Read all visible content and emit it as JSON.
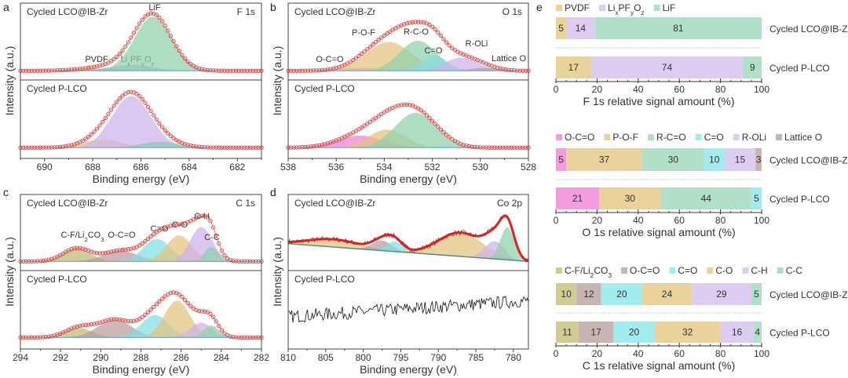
{
  "figure": {
    "panel_letters": [
      "a",
      "b",
      "c",
      "d",
      "e"
    ]
  },
  "chart_data": [
    {
      "id": "a",
      "type": "line",
      "core_level": "F 1s",
      "xlabel": "Binding energy (eV)",
      "ylabel": "Intensity (a.u.)",
      "xlim": [
        691,
        681
      ],
      "xticks": [
        690,
        688,
        686,
        684,
        682
      ],
      "minor_step": 1,
      "fit_style": "circles",
      "subplots": [
        {
          "sample": "Cycled LCO@IB-Zr",
          "components": [
            {
              "label": "PVDF",
              "center": 687.8,
              "height": 0.04,
              "fwhm": 2.0,
              "color": "#e3c47e"
            },
            {
              "label": "LixPFyOz",
              "center": 686.4,
              "height": 0.1,
              "fwhm": 2.0,
              "color": "#a9a3d0"
            },
            {
              "label": "LiF",
              "center": 685.5,
              "height": 0.9,
              "fwhm": 1.8,
              "color": "#8fd1aa"
            }
          ]
        },
        {
          "sample": "Cycled P-LCO",
          "components": [
            {
              "label": "PVDF",
              "center": 687.6,
              "height": 0.14,
              "fwhm": 1.8,
              "color": "#e3c47e"
            },
            {
              "label": "LixPFyOz",
              "center": 686.4,
              "height": 0.86,
              "fwhm": 1.9,
              "color": "#cdb3ec"
            },
            {
              "label": "LiF",
              "center": 685.2,
              "height": 0.1,
              "fwhm": 1.8,
              "color": "#8fc6b0"
            }
          ]
        }
      ]
    },
    {
      "id": "b",
      "type": "line",
      "core_level": "O 1s",
      "xlabel": "Binding energy (eV)",
      "ylabel": "Intensity (a.u.)",
      "xlim": [
        538,
        528
      ],
      "xticks": [
        538,
        536,
        534,
        532,
        530,
        528
      ],
      "minor_step": 1,
      "fit_style": "circles",
      "subplots": [
        {
          "sample": "Cycled LCO@IB-Zr",
          "components": [
            {
              "label": "O-C=O",
              "center": 534.9,
              "height": 0.05,
              "fwhm": 1.8,
              "color": "#ee80d6"
            },
            {
              "label": "P-O-F",
              "center": 533.8,
              "height": 0.48,
              "fwhm": 2.2,
              "color": "#e3c47e"
            },
            {
              "label": "R-C-O",
              "center": 532.6,
              "height": 0.5,
              "fwhm": 1.8,
              "color": "#8fd1aa"
            },
            {
              "label": "C=O",
              "center": 531.9,
              "height": 0.25,
              "fwhm": 1.2,
              "color": "#7fe0e4"
            },
            {
              "label": "R-OLi",
              "center": 530.8,
              "height": 0.22,
              "fwhm": 1.6,
              "color": "#cdb3ec"
            },
            {
              "label": "Lattice O",
              "center": 529.8,
              "height": 0.05,
              "fwhm": 1.3,
              "color": "#b99c9c"
            }
          ]
        },
        {
          "sample": "Cycled P-LCO",
          "components": [
            {
              "label": "O-C=O",
              "center": 535.0,
              "height": 0.2,
              "fwhm": 2.2,
              "color": "#ee80d6"
            },
            {
              "label": "P-O-F",
              "center": 533.9,
              "height": 0.3,
              "fwhm": 1.8,
              "color": "#e3c47e"
            },
            {
              "label": "R-C-O",
              "center": 532.7,
              "height": 0.58,
              "fwhm": 2.0,
              "color": "#8fd1aa"
            },
            {
              "label": "C=O",
              "center": 531.5,
              "height": 0.03,
              "fwhm": 1.2,
              "color": "#7fe0e4"
            }
          ]
        }
      ]
    },
    {
      "id": "c",
      "type": "line",
      "core_level": "C 1s",
      "xlabel": "Binding energy (eV)",
      "ylabel": "Intensity (a.u.)",
      "xlim": [
        294,
        282
      ],
      "xticks": [
        294,
        292,
        290,
        288,
        286,
        284,
        282
      ],
      "minor_step": 1,
      "fit_style": "circles",
      "subplots": [
        {
          "sample": "Cycled LCO@IB-Zr",
          "components": [
            {
              "label": "C-F/Li2CO3",
              "center": 291.2,
              "height": 0.22,
              "fwhm": 1.6,
              "color": "#bdb879"
            },
            {
              "label": "O-C=O",
              "center": 289.0,
              "height": 0.18,
              "fwhm": 2.0,
              "color": "#b99c9c"
            },
            {
              "label": "C=O",
              "center": 287.2,
              "height": 0.38,
              "fwhm": 1.6,
              "color": "#7fe0e4"
            },
            {
              "label": "C-O",
              "center": 286.1,
              "height": 0.44,
              "fwhm": 1.5,
              "color": "#e3c47e"
            },
            {
              "label": "C-H",
              "center": 285.0,
              "height": 0.58,
              "fwhm": 1.3,
              "color": "#cdb3ec"
            },
            {
              "label": "C-C",
              "center": 284.5,
              "height": 0.25,
              "fwhm": 0.8,
              "color": "#8fd1aa"
            }
          ]
        },
        {
          "sample": "Cycled P-LCO",
          "components": [
            {
              "label": "C-F/Li2CO3",
              "center": 291.1,
              "height": 0.16,
              "fwhm": 1.6,
              "color": "#bdb879"
            },
            {
              "label": "O-C=O",
              "center": 289.3,
              "height": 0.3,
              "fwhm": 2.0,
              "color": "#b99c9c"
            },
            {
              "label": "C=O",
              "center": 287.3,
              "height": 0.38,
              "fwhm": 1.6,
              "color": "#7fe0e4"
            },
            {
              "label": "C-O",
              "center": 286.2,
              "height": 0.62,
              "fwhm": 1.5,
              "color": "#e3c47e"
            },
            {
              "label": "C-H",
              "center": 285.0,
              "height": 0.25,
              "fwhm": 1.3,
              "color": "#cdb3ec"
            },
            {
              "label": "C-C",
              "center": 284.5,
              "height": 0.2,
              "fwhm": 0.9,
              "color": "#8fd1aa"
            }
          ]
        }
      ]
    },
    {
      "id": "d",
      "type": "line",
      "core_level": "Co 2p",
      "xlabel": "Binding energy (eV)",
      "ylabel": "Intensity (a.u.)",
      "xlim": [
        810,
        778
      ],
      "xticks": [
        810,
        805,
        800,
        795,
        790,
        785,
        780
      ],
      "minor_step": 2.5,
      "fit_style": "line",
      "subplots": [
        {
          "sample": "Cycled LCO@IB-Zr",
          "background": [
            [
              810,
              0.3
            ],
            [
              778,
              0.0
            ]
          ],
          "components": [
            {
              "center": 804,
              "height": 0.13,
              "fwhm": 8,
              "color": "#e3c47e"
            },
            {
              "center": 797.5,
              "height": 0.17,
              "fwhm": 3,
              "color": "#b99c9c"
            },
            {
              "center": 795.8,
              "height": 0.17,
              "fwhm": 2.5,
              "color": "#7fe0e4"
            },
            {
              "center": 787,
              "height": 0.4,
              "fwhm": 7,
              "color": "#e3c47e"
            },
            {
              "center": 782.5,
              "height": 0.3,
              "fwhm": 3,
              "color": "#cdb3ec"
            },
            {
              "center": 780.8,
              "height": 0.55,
              "fwhm": 2.2,
              "color": "#8fd1aa"
            }
          ]
        },
        {
          "sample": "Cycled P-LCO",
          "trend": [
            [
              810,
              0.35
            ],
            [
              778,
              0.62
            ]
          ],
          "components": []
        }
      ]
    },
    {
      "id": "e1",
      "type": "bar",
      "orientation": "horizontal",
      "stacked": true,
      "xlabel": "F 1s relative signal amount (%)",
      "xlim": [
        0,
        100
      ],
      "xticks": [
        0,
        20,
        40,
        60,
        80,
        100
      ],
      "categories": [
        "Cycled LCO@IB-Zr",
        "Cycled P-LCO"
      ],
      "series": [
        {
          "name": "PVDF",
          "color": "#ead39b",
          "values": [
            5,
            17
          ]
        },
        {
          "name": "LixPFyOz",
          "color": "#ddcdf2",
          "values": [
            14,
            74
          ]
        },
        {
          "name": "LiF",
          "color": "#b1e0c8",
          "values": [
            81,
            9
          ]
        }
      ]
    },
    {
      "id": "e2",
      "type": "bar",
      "orientation": "horizontal",
      "stacked": true,
      "xlabel": "O 1s relative signal amount (%)",
      "xlim": [
        0,
        100
      ],
      "xticks": [
        0,
        20,
        40,
        60,
        80,
        100
      ],
      "categories": [
        "Cycled LCO@IB-Zr",
        "Cycled P-LCO"
      ],
      "series": [
        {
          "name": "O-C=O",
          "color": "#f39ce0",
          "values": [
            5,
            21
          ]
        },
        {
          "name": "P-O-F",
          "color": "#ead39b",
          "values": [
            37,
            30
          ]
        },
        {
          "name": "R-C=O",
          "color": "#b1e0c8",
          "values": [
            30,
            44
          ]
        },
        {
          "name": "C=O",
          "color": "#a3ecee",
          "values": [
            10,
            5
          ]
        },
        {
          "name": "R-OLi",
          "color": "#ddcdf2",
          "values": [
            15,
            0
          ]
        },
        {
          "name": "Lattice O",
          "color": "#c9b4b4",
          "values": [
            3,
            0
          ]
        }
      ]
    },
    {
      "id": "e3",
      "type": "bar",
      "orientation": "horizontal",
      "stacked": true,
      "xlabel": "C 1s relative signal amount (%)",
      "xlim": [
        0,
        100
      ],
      "xticks": [
        0,
        20,
        40,
        60,
        80,
        100
      ],
      "categories": [
        "Cycled LCO@IB-Zr",
        "Cycled P-LCO"
      ],
      "series": [
        {
          "name": "C-F/Li2CO3",
          "color": "#cfcc96",
          "values": [
            10,
            11
          ]
        },
        {
          "name": "O-C=O",
          "color": "#c9b4b4",
          "values": [
            12,
            17
          ]
        },
        {
          "name": "C=O",
          "color": "#a3ecee",
          "values": [
            20,
            20
          ]
        },
        {
          "name": "C-O",
          "color": "#ead39b",
          "values": [
            24,
            32
          ]
        },
        {
          "name": "C-H",
          "color": "#ddcdf2",
          "values": [
            29,
            16
          ]
        },
        {
          "name": "C-C",
          "color": "#b1e0c8",
          "values": [
            5,
            4
          ]
        }
      ]
    }
  ]
}
